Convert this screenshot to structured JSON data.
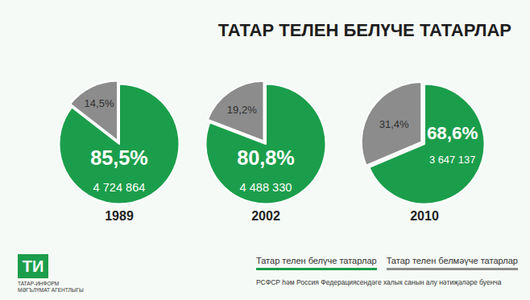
{
  "header": {
    "title": "ТАТАР ТЕЛЕН БЕЛҮЧЕ ТАТАРЛАР"
  },
  "footer": {
    "source": "РСФСР һәм Россия Федерациясендәге халык санын алу нәтиҗәләре буенча",
    "logo": {
      "mark": "ТИ",
      "name": "ТАТАР-ИНФОРМ",
      "subtitle": "МӘГЪЛҮМАТ АГЕНТЛЫГЫ"
    }
  },
  "chart_data": [
    {
      "type": "pie",
      "title": "1989",
      "categories": [
        "Татар телен белүче татарлар",
        "Татар телен белмәүче татарлар"
      ],
      "values": [
        85.5,
        14.5
      ],
      "value_labels": [
        "85,5%",
        "14,5%"
      ],
      "speakers": "4 724 864",
      "colors": [
        "#1b9e4b",
        "#8c8c8c"
      ],
      "data_labels": true,
      "legend": "bottom right"
    },
    {
      "type": "pie",
      "title": "2002",
      "categories": [
        "Татар телен белүче татарлар",
        "Татар телен белмәүче татарлар"
      ],
      "values": [
        80.8,
        19.2
      ],
      "value_labels": [
        "80,8%",
        "19,2%"
      ],
      "speakers": "4 488 330",
      "colors": [
        "#1b9e4b",
        "#8c8c8c"
      ],
      "data_labels": true,
      "legend": "bottom right"
    },
    {
      "type": "pie",
      "title": "2010",
      "categories": [
        "Татар телен белүче татарлар",
        "Татар телен белмәүче татарлар"
      ],
      "values": [
        68.6,
        31.4
      ],
      "value_labels": [
        "68,6%",
        "31,4%"
      ],
      "speakers": "3 647 137",
      "colors": [
        "#1b9e4b",
        "#8c8c8c"
      ],
      "data_labels": true,
      "legend": "bottom right"
    }
  ]
}
